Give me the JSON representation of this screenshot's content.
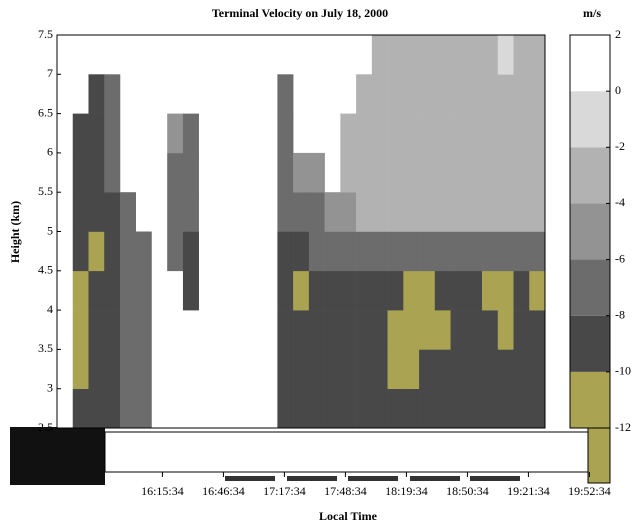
{
  "chart_data": {
    "type": "contour",
    "title": "Terminal Velocity on July 18, 2000",
    "xlabel": "Local Time",
    "ylabel": "Height (km)",
    "colorbar_label": "m/s",
    "xlim": [
      922,
      1170
    ],
    "ylim": [
      2.5,
      7.5
    ],
    "yticks": [
      2.5,
      3,
      3.5,
      4,
      4.5,
      5,
      5.5,
      6,
      6.5,
      7,
      7.5
    ],
    "xticks": [
      {
        "value": 975.57,
        "label": "16:15:34"
      },
      {
        "value": 1006.57,
        "label": "16:46:34"
      },
      {
        "value": 1037.57,
        "label": "17:17:34"
      },
      {
        "value": 1068.57,
        "label": "17:48:34"
      },
      {
        "value": 1099.57,
        "label": "18:19:34"
      },
      {
        "value": 1130.57,
        "label": "18:50:34"
      },
      {
        "value": 1161.57,
        "label": "19:21:34"
      },
      {
        "value": 1192.57,
        "label": "19:52:34"
      }
    ],
    "clim": [
      -12,
      2
    ],
    "cticks": [
      2,
      0,
      -2,
      -4,
      -6,
      -8,
      -10,
      -12
    ],
    "levels": [
      -12,
      -10,
      -8,
      -6,
      -4,
      -2,
      0,
      2
    ],
    "colors": [
      "#a9a352",
      "#484848",
      "#6c6c6c",
      "#939393",
      "#b2b2b2",
      "#d9d9d9",
      "#ffffff"
    ],
    "x": [
      926,
      934,
      942,
      950,
      958,
      966,
      974,
      982,
      990,
      998,
      1006,
      1014,
      1022,
      1030,
      1038,
      1046,
      1054,
      1062,
      1070,
      1078,
      1086,
      1094,
      1102,
      1110,
      1118,
      1126,
      1134,
      1142,
      1150,
      1158,
      1166
    ],
    "heights": [
      2.75,
      3.25,
      3.75,
      4.25,
      4.75,
      5.25,
      5.75,
      6.25,
      6.75,
      7.25
    ],
    "z": [
      [
        null,
        null,
        null,
        null,
        null,
        null,
        null,
        null,
        null,
        null
      ],
      [
        -9,
        -11,
        -11,
        -11,
        -9,
        -9,
        -9,
        -9,
        null,
        null
      ],
      [
        -9,
        -9,
        -9,
        -9,
        -11,
        -9,
        -9,
        -9,
        -9,
        null
      ],
      [
        -9,
        -9,
        -9,
        -9,
        -9,
        -9,
        -7,
        -7,
        -7,
        null
      ],
      [
        -7,
        -7,
        -7,
        -7,
        -7,
        -7,
        null,
        null,
        null,
        null
      ],
      [
        -7,
        -7,
        -7,
        -7,
        -7,
        null,
        null,
        null,
        null,
        null
      ],
      [
        null,
        null,
        null,
        null,
        null,
        null,
        null,
        null,
        null,
        null
      ],
      [
        null,
        null,
        null,
        null,
        -7,
        -7,
        -7,
        -5,
        null,
        null
      ],
      [
        null,
        null,
        null,
        -9,
        -9,
        -7,
        -7,
        -7,
        null,
        null
      ],
      [
        null,
        null,
        null,
        null,
        null,
        null,
        null,
        null,
        null,
        null
      ],
      [
        null,
        null,
        null,
        null,
        null,
        null,
        null,
        null,
        null,
        null
      ],
      [
        null,
        null,
        null,
        null,
        null,
        null,
        null,
        null,
        null,
        null
      ],
      [
        null,
        null,
        null,
        null,
        null,
        null,
        null,
        null,
        null,
        null
      ],
      [
        null,
        null,
        null,
        null,
        null,
        null,
        null,
        null,
        null,
        null
      ],
      [
        -9,
        -9,
        -9,
        -9,
        -9,
        -7,
        -7,
        -7,
        -7,
        null
      ],
      [
        -9,
        -9,
        -9,
        -11,
        -9,
        -7,
        -5,
        null,
        null,
        null
      ],
      [
        -9,
        -9,
        -9,
        -9,
        -7,
        -7,
        -5,
        null,
        null,
        null
      ],
      [
        -9,
        -9,
        -9,
        -9,
        -7,
        -5,
        null,
        null,
        null,
        null
      ],
      [
        -9,
        -9,
        -9,
        -9,
        -7,
        -5,
        -3,
        -3,
        null,
        null
      ],
      [
        -9,
        -9,
        -9,
        -9,
        -7,
        -3,
        -3,
        -3,
        -3,
        null
      ],
      [
        -9,
        -9,
        -9,
        -9,
        -7,
        -3,
        -3,
        -3,
        -3,
        -3
      ],
      [
        -9,
        -11,
        -11,
        -9,
        -7,
        -3,
        -3,
        -3,
        -3,
        -3
      ],
      [
        -9,
        -11,
        -11,
        -11,
        -7,
        -3,
        -3,
        -3,
        -3,
        -3
      ],
      [
        -9,
        -9,
        -11,
        -11,
        -7,
        -3,
        -3,
        -3,
        -3,
        -3
      ],
      [
        -9,
        -9,
        -11,
        -9,
        -7,
        -3,
        -3,
        -3,
        -3,
        -3
      ],
      [
        -9,
        -9,
        -9,
        -9,
        -7,
        -3,
        -3,
        -3,
        -3,
        -3
      ],
      [
        -9,
        -9,
        -9,
        -9,
        -7,
        -3,
        -3,
        -3,
        -3,
        -3
      ],
      [
        -9,
        -9,
        -9,
        -11,
        -7,
        -3,
        -3,
        -3,
        -3,
        -3
      ],
      [
        -9,
        -9,
        -11,
        -11,
        -7,
        -3,
        -3,
        -3,
        -3,
        -1
      ],
      [
        -9,
        -9,
        -9,
        -9,
        -7,
        -3,
        -3,
        -3,
        -3,
        -3
      ],
      [
        -9,
        -9,
        -9,
        -11,
        -7,
        -3,
        -3,
        -3,
        -3,
        -3
      ]
    ]
  }
}
